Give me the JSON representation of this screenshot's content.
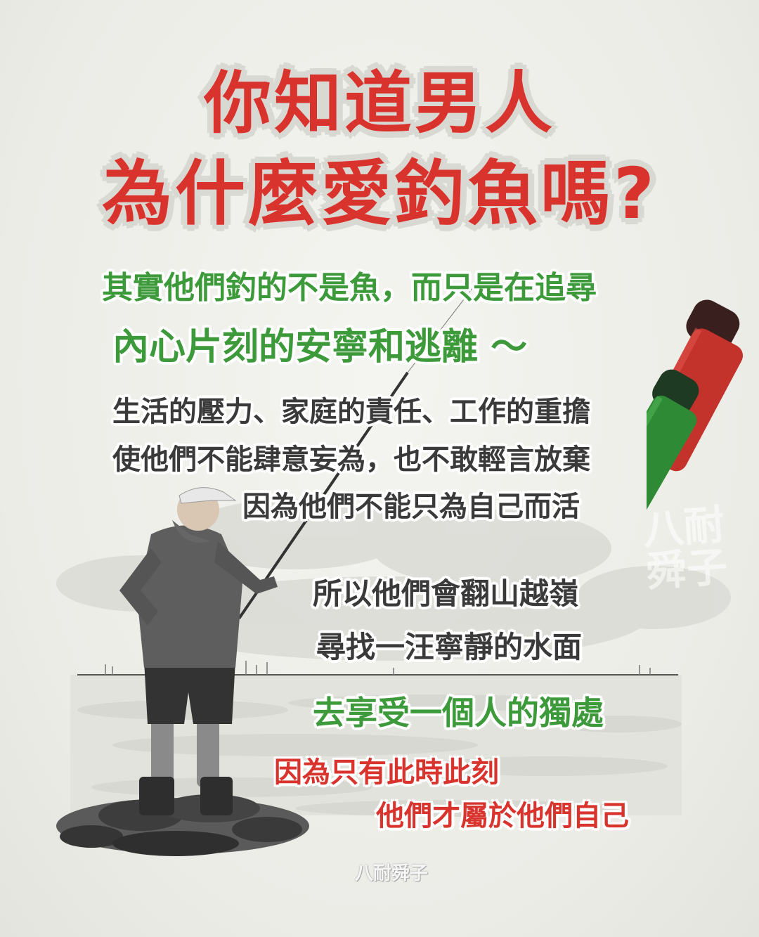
{
  "title": {
    "line1": "你知道男人",
    "line2": "為什麼愛釣魚嗎?"
  },
  "lines": {
    "l1": "其實他們釣的不是魚，而只是在追尋",
    "l2": "內心片刻的安寧和逃離 ～",
    "l3": "生活的壓力、家庭的責任、工作的重擔",
    "l4": "使他們不能肆意妄為，也不敢輕言放棄",
    "l5": "因為他們不能只為自己而活",
    "l6": "所以他們會翻山越嶺",
    "l7": "尋找一汪寧靜的水面",
    "l8": "去享受一個人的獨處",
    "l9": "因為只有此時此刻",
    "l10": "他們才屬於他們自己"
  },
  "watermark": {
    "corner": "八耐舜子",
    "bottom": "八耐舜子"
  },
  "colors": {
    "title_red": "#d8332d",
    "accent_green": "#3d9a3a",
    "text_dark": "#3a3a3a",
    "paper": "#efefeb"
  },
  "icons": {
    "markers": "red-green-marker-icon",
    "fisherman": "fisherman-illustration"
  }
}
